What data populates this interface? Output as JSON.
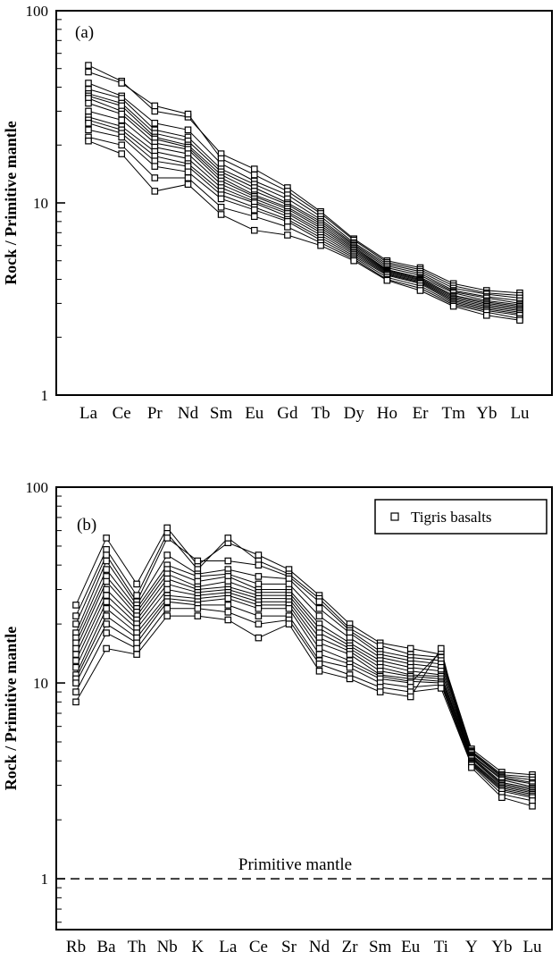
{
  "figure": {
    "background": "#ffffff",
    "ink_color": "#000000"
  },
  "chart_data": [
    {
      "type": "line",
      "panel_label": "(a)",
      "ylabel": "Rock / Primitive mantle",
      "yscale": "log",
      "ylim": [
        1,
        100
      ],
      "ytick_values": [
        1,
        10,
        100
      ],
      "ytick_labels": [
        "1",
        "10",
        "100"
      ],
      "grid": false,
      "marker": "open-square",
      "categories": [
        "La",
        "Ce",
        "Pr",
        "Nd",
        "Sm",
        "Eu",
        "Gd",
        "Tb",
        "Dy",
        "Ho",
        "Er",
        "Tm",
        "Yb",
        "Lu"
      ],
      "series": [
        [
          52,
          43,
          30,
          28,
          18,
          15,
          12,
          9.0,
          6.5,
          5.0,
          4.6,
          3.8,
          3.5,
          3.4
        ],
        [
          48,
          42,
          32,
          29,
          17,
          14,
          11.5,
          8.8,
          6.4,
          4.9,
          4.5,
          3.7,
          3.4,
          3.3
        ],
        [
          42,
          36,
          26,
          24,
          16,
          13,
          11,
          8.5,
          6.2,
          4.8,
          4.4,
          3.6,
          3.35,
          3.2
        ],
        [
          39,
          35,
          24,
          22,
          15,
          12.5,
          10.5,
          8.2,
          6.1,
          4.7,
          4.3,
          3.5,
          3.25,
          3.1
        ],
        [
          37,
          33,
          23,
          21,
          14.5,
          12,
          10,
          8.0,
          6.0,
          4.6,
          4.2,
          3.45,
          3.2,
          3.0
        ],
        [
          36,
          32,
          22,
          20,
          14,
          11.5,
          9.8,
          7.8,
          5.9,
          4.5,
          4.1,
          3.4,
          3.1,
          2.95
        ],
        [
          35,
          30,
          21.5,
          19.5,
          13.5,
          11,
          9.5,
          7.6,
          5.8,
          4.45,
          4.05,
          3.3,
          3.05,
          2.9
        ],
        [
          33,
          29,
          20.5,
          19,
          13,
          10.8,
          9.3,
          7.4,
          5.7,
          4.4,
          4.0,
          3.25,
          3.0,
          2.85
        ],
        [
          30,
          27,
          19.5,
          18,
          12.5,
          10.5,
          9.0,
          7.2,
          5.6,
          4.35,
          3.95,
          3.2,
          2.95,
          2.8
        ],
        [
          28,
          25,
          18.5,
          17,
          12,
          10.2,
          8.8,
          7.0,
          5.5,
          4.3,
          3.9,
          3.15,
          2.9,
          2.75
        ],
        [
          27,
          24,
          17.5,
          16,
          11.5,
          10,
          8.5,
          6.8,
          5.4,
          4.25,
          3.85,
          3.1,
          2.85,
          2.7
        ],
        [
          26,
          23,
          16.5,
          15.5,
          11,
          9.5,
          8.2,
          6.6,
          5.3,
          4.2,
          3.8,
          3.05,
          2.8,
          2.65
        ],
        [
          24,
          22,
          15.5,
          14.5,
          10.5,
          9.2,
          8.0,
          6.4,
          5.2,
          4.1,
          3.7,
          3.0,
          2.75,
          2.6
        ],
        [
          22,
          20,
          13.5,
          13.5,
          9.5,
          8.5,
          7.5,
          6.2,
          5.1,
          4.0,
          3.6,
          2.95,
          2.7,
          2.5
        ],
        [
          21,
          18,
          11.5,
          12.5,
          8.7,
          7.2,
          6.8,
          6.0,
          5.0,
          3.95,
          3.5,
          2.9,
          2.6,
          2.45
        ]
      ]
    },
    {
      "type": "line",
      "panel_label": "(b)",
      "ylabel": "Rock / Primitive mantle",
      "yscale": "log",
      "ylim": [
        0.55,
        100
      ],
      "ytick_values": [
        1,
        10,
        100
      ],
      "ytick_labels": [
        "1",
        "10",
        "100"
      ],
      "grid": false,
      "marker": "open-square",
      "legend": {
        "label": "Tigris basalts",
        "position": "top-right",
        "marker": "open-square"
      },
      "reference_line": {
        "y": 1,
        "style": "dashed",
        "label": "Primitive mantle"
      },
      "categories": [
        "Rb",
        "Ba",
        "Th",
        "Nb",
        "K",
        "La",
        "Ce",
        "Sr",
        "Nd",
        "Zr",
        "Sm",
        "Eu",
        "Ti",
        "Y",
        "Yb",
        "Lu"
      ],
      "series": [
        [
          25,
          55,
          32,
          62,
          40,
          52,
          45,
          38,
          28,
          20,
          16,
          15,
          14,
          4.6,
          3.5,
          3.4
        ],
        [
          22,
          48,
          28,
          58,
          38,
          55,
          42,
          36,
          27,
          19,
          15.5,
          14,
          13.5,
          4.5,
          3.4,
          3.3
        ],
        [
          20,
          45,
          26,
          55,
          42,
          42,
          40,
          35,
          26,
          18.5,
          14.5,
          13.5,
          13,
          4.45,
          3.35,
          3.2
        ],
        [
          18,
          42,
          25,
          45,
          36,
          38,
          35,
          34,
          24,
          18,
          14,
          13,
          12.5,
          4.4,
          3.3,
          3.1
        ],
        [
          17,
          38,
          24,
          40,
          35,
          36,
          32,
          32,
          22,
          17,
          13.5,
          12.5,
          12,
          4.3,
          3.25,
          3.05
        ],
        [
          16,
          35,
          23,
          38,
          33,
          35,
          30,
          30,
          20,
          16,
          13,
          12,
          11.5,
          4.25,
          3.2,
          2.95
        ],
        [
          15,
          33,
          22,
          36,
          31,
          33,
          29,
          29,
          19,
          15.5,
          12.5,
          11.5,
          11,
          4.2,
          3.1,
          2.9
        ],
        [
          14,
          30,
          21,
          34,
          30,
          31,
          28,
          28,
          18,
          15,
          12,
          11,
          10.8,
          4.15,
          3.05,
          2.85
        ],
        [
          13,
          28,
          20,
          32,
          29,
          30,
          27,
          27,
          17,
          14.5,
          11.5,
          10.8,
          10.5,
          4.1,
          3.0,
          2.8
        ],
        [
          12,
          26,
          19,
          30,
          28,
          29,
          26,
          26,
          16,
          14,
          11,
          10.5,
          10.2,
          4.0,
          2.95,
          2.75
        ],
        [
          11,
          24,
          18,
          28,
          27,
          28,
          25,
          25,
          15,
          13,
          10.8,
          10.2,
          10,
          3.95,
          2.9,
          2.7
        ],
        [
          10.5,
          22,
          17,
          27,
          26,
          27,
          24,
          24,
          14,
          12.5,
          10.5,
          10,
          14.5,
          3.9,
          2.85,
          2.65
        ],
        [
          10,
          20,
          16,
          26,
          25,
          25,
          22,
          22,
          13,
          12,
          10,
          9.5,
          9.8,
          3.85,
          2.8,
          2.6
        ],
        [
          9,
          18,
          15,
          24,
          24,
          23,
          20,
          21,
          12.5,
          11,
          9.5,
          9,
          9.4,
          3.8,
          2.7,
          2.5
        ],
        [
          8,
          15,
          14,
          22,
          22,
          21,
          17,
          20,
          11.5,
          10.5,
          9,
          8.5,
          15,
          3.7,
          2.6,
          2.35
        ]
      ]
    }
  ]
}
